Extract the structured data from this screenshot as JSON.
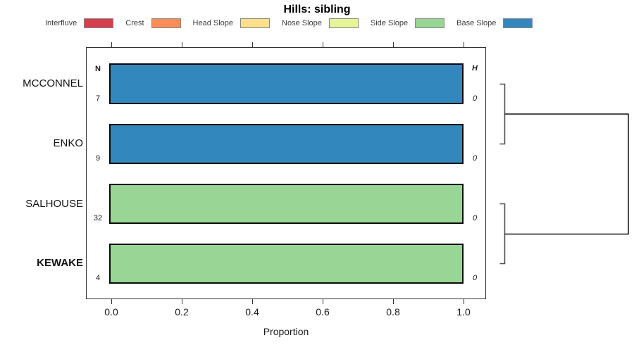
{
  "chart_data": {
    "type": "bar",
    "orientation": "horizontal",
    "title": "Hills: sibling",
    "xlabel": "Proportion",
    "xlim": [
      0,
      1
    ],
    "x_tick_labels": [
      "0.0",
      "0.2",
      "0.4",
      "0.6",
      "0.8",
      "1.0"
    ],
    "x_tick_values": [
      0.0,
      0.2,
      0.4,
      0.6,
      0.8,
      1.0
    ],
    "grid": false,
    "legend_position": "top",
    "col_headers": {
      "n": "N",
      "h": "H"
    },
    "legend": {
      "items": [
        {
          "label": "Interfluve",
          "color": "#D53E4F"
        },
        {
          "label": "Crest",
          "color": "#FC8D59"
        },
        {
          "label": "Head Slope",
          "color": "#FEE08B"
        },
        {
          "label": "Nose Slope",
          "color": "#E6F598"
        },
        {
          "label": "Side Slope",
          "color": "#99D594"
        },
        {
          "label": "Base Slope",
          "color": "#3288BD"
        }
      ]
    },
    "rows": [
      {
        "name": "MCCONNEL",
        "n": "7",
        "h": "0",
        "emphasis": false,
        "segments": [
          {
            "class": "Base Slope",
            "proportion": 1.0
          }
        ]
      },
      {
        "name": "ENKO",
        "n": "9",
        "h": "0",
        "emphasis": false,
        "segments": [
          {
            "class": "Base Slope",
            "proportion": 1.0
          }
        ]
      },
      {
        "name": "SALHOUSE",
        "n": "32",
        "h": "0",
        "emphasis": false,
        "segments": [
          {
            "class": "Side Slope",
            "proportion": 1.0
          }
        ]
      },
      {
        "name": "KEWAKE",
        "n": "4",
        "h": "0",
        "emphasis": true,
        "segments": [
          {
            "class": "Side Slope",
            "proportion": 1.0
          }
        ]
      }
    ],
    "dendrogram": {
      "merges": [
        {
          "members": [
            "MCCONNEL",
            "ENKO"
          ],
          "height": 0
        },
        {
          "members": [
            "SALHOUSE",
            "KEWAKE"
          ],
          "height": 0
        },
        {
          "members": [
            "cluster-1",
            "cluster-2"
          ],
          "height": 1
        }
      ]
    }
  }
}
